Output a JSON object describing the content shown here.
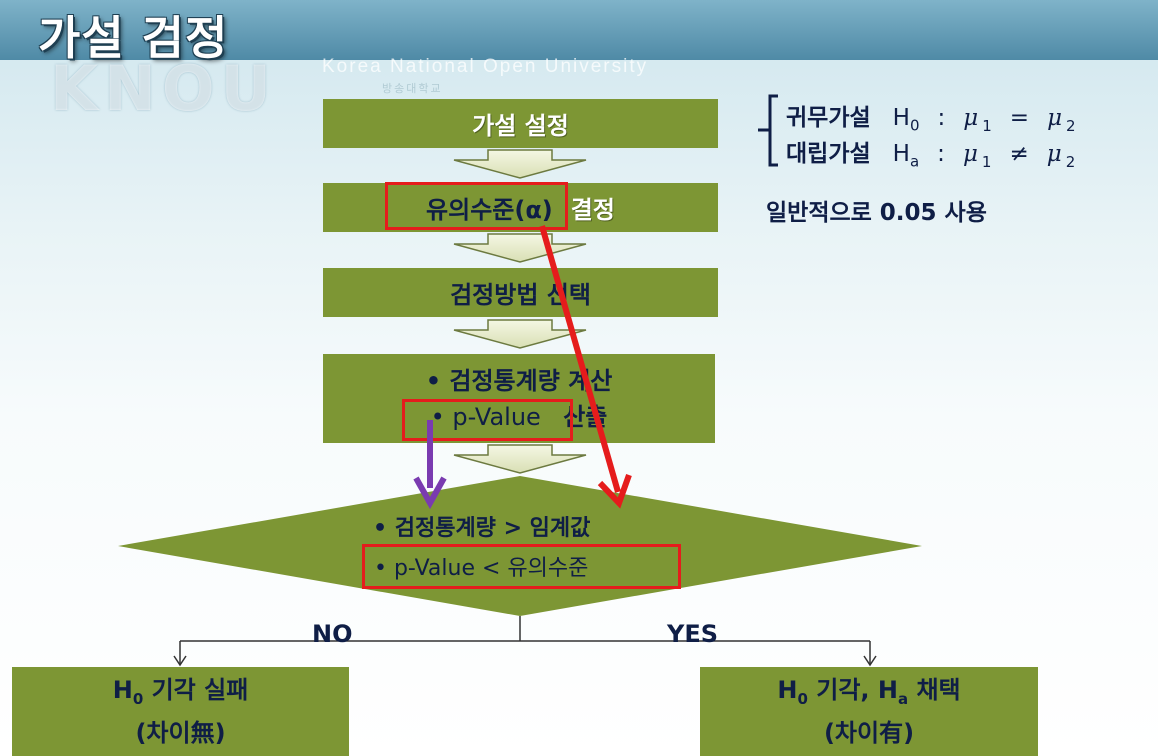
{
  "title": "가설 검정",
  "watermark": {
    "logo": "KNOU",
    "subtitle": "Korea National Open University",
    "small": "방송대학교"
  },
  "steps": [
    {
      "label": "가설 설정"
    },
    {
      "highlight": "유의수준(α)",
      "rest": "결정"
    },
    {
      "label": "검정방법 선택"
    },
    {
      "line1": "•  검정통계량 계산",
      "line2_highlight": "•  p-Value",
      "line2_rest": "산출"
    }
  ],
  "decision": {
    "line1": "• 검정통계량 > 임계값",
    "line2": "• p-Value < 유의수준"
  },
  "branches": {
    "no_label": "NO",
    "yes_label": "YES",
    "no_box": {
      "line1_pre": "H",
      "line1_sub": "0",
      "line1_post": " 기각 실패",
      "line2": "(차이無)"
    },
    "yes_box": {
      "line1_pre": "H",
      "line1_sub": "0",
      "line1_mid": " 기각, H",
      "line1_sub2": "a",
      "line1_post": " 채택",
      "line2": "(차이有)"
    }
  },
  "hypotheses": {
    "null_label": "귀무가설",
    "null_H": "H",
    "null_sub": "0",
    "null_expr_a": ":",
    "mu": "μ",
    "mu1_sub": "1",
    "null_op": "=",
    "mu2_sub": "2",
    "alt_label": "대립가설",
    "alt_H": "H",
    "alt_sub": "a",
    "alt_op": "≠"
  },
  "note": "일반적으로 0.05 사용",
  "colors": {
    "box": "#7d9634",
    "highlight": "#e51c1c",
    "purple_arrow": "#7a3bb0",
    "text": "#0f1e46"
  }
}
